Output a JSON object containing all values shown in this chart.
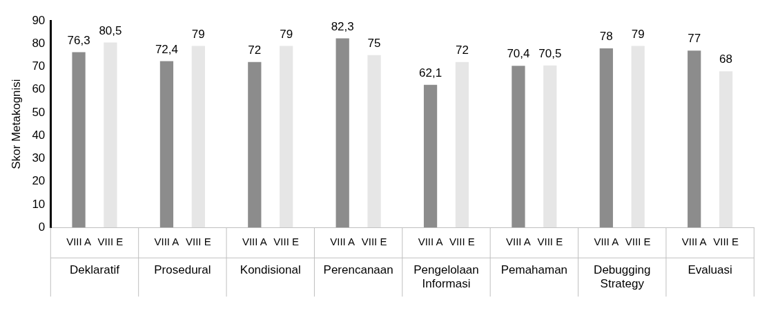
{
  "chart_data": {
    "type": "bar",
    "ylabel": "Skor Metakognisi",
    "categories": [
      "Deklaratif",
      "Prosedural",
      "Kondisional",
      "Perencanaan",
      "Pengelolaan Informasi",
      "Pemahaman",
      "Debugging Strategy",
      "Evaluasi"
    ],
    "series": [
      {
        "name": "VIII A",
        "color": "#8c8c8c",
        "values": [
          76.3,
          72.4,
          72,
          82.3,
          62.1,
          70.4,
          78,
          77
        ],
        "value_labels": [
          "76,3",
          "72,4",
          "72",
          "82,3",
          "62,1",
          "70,4",
          "78",
          "77"
        ]
      },
      {
        "name": "VIII E",
        "color": "#e6e6e6",
        "values": [
          80.5,
          79,
          79,
          75,
          72,
          70.5,
          79,
          68
        ],
        "value_labels": [
          "80,5",
          "79",
          "79",
          "75",
          "72",
          "70,5",
          "79",
          "68"
        ]
      }
    ],
    "ylim": [
      0,
      90
    ],
    "yticks": [
      0,
      10,
      20,
      30,
      40,
      50,
      60,
      70,
      80,
      90
    ],
    "grid": false,
    "legend": false
  }
}
